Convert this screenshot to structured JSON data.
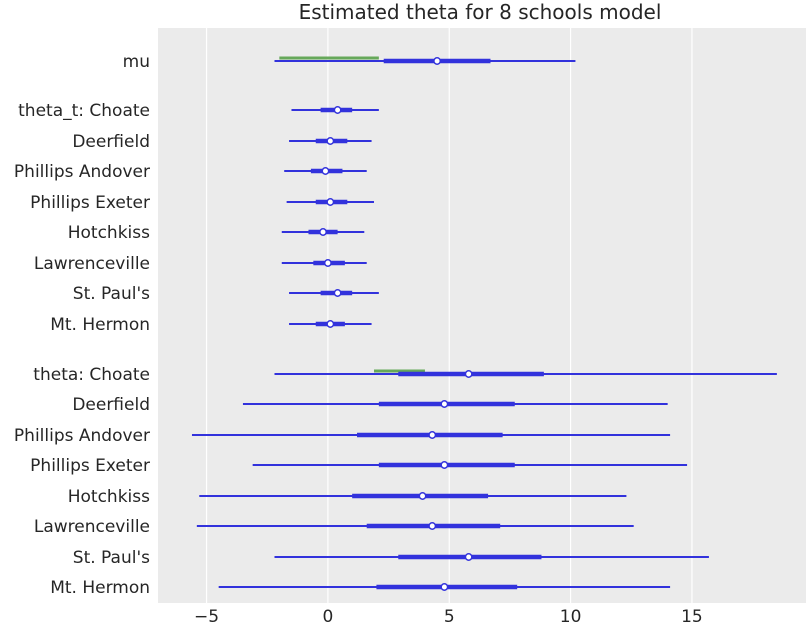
{
  "chart_data": {
    "type": "forest",
    "title": "Estimated theta for 8 schools model",
    "xlabel": "",
    "ylabel": "",
    "xlim": [
      -7,
      19.7
    ],
    "x_ticks": [
      -5,
      0,
      5,
      10,
      15
    ],
    "x_tick_labels": [
      "−5",
      "0",
      "5",
      "10",
      "15"
    ],
    "grid": true,
    "colors": {
      "background": "#ebebeb",
      "grid": "#ffffff",
      "interval": "#3232dc",
      "marker_fill": "#ffffff",
      "highlight": "#66a85a",
      "text": "#262626"
    },
    "rows": [
      {
        "label": "mu",
        "hdi94": [
          -2.2,
          10.2
        ],
        "hdi50": [
          2.3,
          6.7
        ],
        "median": 4.5,
        "highlight": [
          -2.0,
          2.1
        ]
      },
      {
        "label": "theta_t: Choate",
        "hdi94": [
          -1.5,
          2.1
        ],
        "hdi50": [
          -0.3,
          1.0
        ],
        "median": 0.4
      },
      {
        "label": "Deerfield",
        "hdi94": [
          -1.6,
          1.8
        ],
        "hdi50": [
          -0.5,
          0.8
        ],
        "median": 0.1
      },
      {
        "label": "Phillips Andover",
        "hdi94": [
          -1.8,
          1.6
        ],
        "hdi50": [
          -0.7,
          0.6
        ],
        "median": -0.1
      },
      {
        "label": "Phillips Exeter",
        "hdi94": [
          -1.7,
          1.9
        ],
        "hdi50": [
          -0.5,
          0.8
        ],
        "median": 0.1
      },
      {
        "label": "Hotchkiss",
        "hdi94": [
          -1.9,
          1.5
        ],
        "hdi50": [
          -0.8,
          0.4
        ],
        "median": -0.2
      },
      {
        "label": "Lawrenceville",
        "hdi94": [
          -1.9,
          1.6
        ],
        "hdi50": [
          -0.6,
          0.7
        ],
        "median": 0.0
      },
      {
        "label": "St. Paul's",
        "hdi94": [
          -1.6,
          2.1
        ],
        "hdi50": [
          -0.3,
          1.0
        ],
        "median": 0.4
      },
      {
        "label": "Mt. Hermon",
        "hdi94": [
          -1.6,
          1.8
        ],
        "hdi50": [
          -0.5,
          0.7
        ],
        "median": 0.1
      },
      {
        "label": "theta: Choate",
        "hdi94": [
          -2.2,
          18.5
        ],
        "hdi50": [
          2.9,
          8.9
        ],
        "median": 5.8,
        "highlight": [
          1.9,
          4.0
        ]
      },
      {
        "label": "Deerfield",
        "hdi94": [
          -3.5,
          14.0
        ],
        "hdi50": [
          2.1,
          7.7
        ],
        "median": 4.8
      },
      {
        "label": "Phillips Andover",
        "hdi94": [
          -5.6,
          14.1
        ],
        "hdi50": [
          1.2,
          7.2
        ],
        "median": 4.3
      },
      {
        "label": "Phillips Exeter",
        "hdi94": [
          -3.1,
          14.8
        ],
        "hdi50": [
          2.1,
          7.7
        ],
        "median": 4.8
      },
      {
        "label": "Hotchkiss",
        "hdi94": [
          -5.3,
          12.3
        ],
        "hdi50": [
          1.0,
          6.6
        ],
        "median": 3.9
      },
      {
        "label": "Lawrenceville",
        "hdi94": [
          -5.4,
          12.6
        ],
        "hdi50": [
          1.6,
          7.1
        ],
        "median": 4.3
      },
      {
        "label": "St. Paul's",
        "hdi94": [
          -2.2,
          15.7
        ],
        "hdi50": [
          2.9,
          8.8
        ],
        "median": 5.8
      },
      {
        "label": "Mt. Hermon",
        "hdi94": [
          -4.5,
          14.1
        ],
        "hdi50": [
          2.0,
          7.8
        ],
        "median": 4.8
      }
    ]
  }
}
